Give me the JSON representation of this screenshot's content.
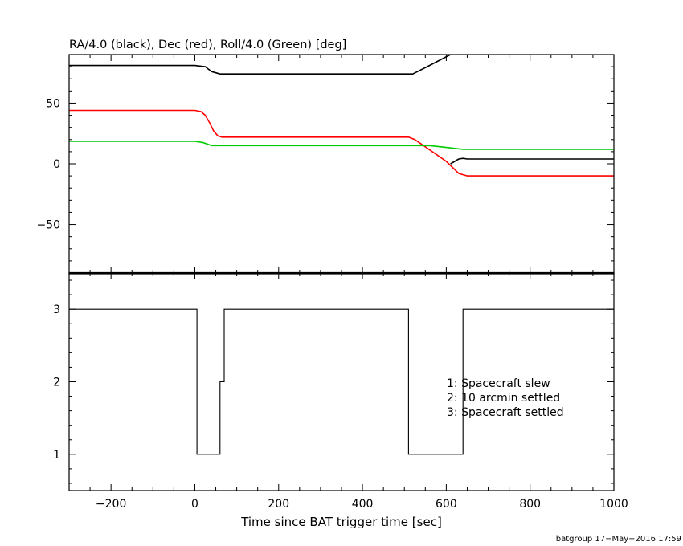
{
  "chart_data": [
    {
      "type": "line",
      "title": "RA/4.0 (black), Dec (red), Roll/4.0 (Green) [deg]",
      "xlim": [
        -300,
        1000
      ],
      "ylim": [
        -90,
        90
      ],
      "y_ticks": [
        -50,
        0,
        50
      ],
      "y_tick_labels": [
        "−50",
        "0",
        "50"
      ],
      "grid": false,
      "series": [
        {
          "color": "#000000",
          "segments": [
            {
              "x": [
                -300,
                0,
                25,
                40,
                60,
                70,
                510,
                520,
                560,
                610
              ],
              "y": [
                81,
                81,
                80,
                76,
                74,
                74,
                74,
                74,
                81,
                90
              ]
            },
            {
              "x": [
                610,
                620,
                630,
                640,
                650,
                1000
              ],
              "y": [
                0,
                2,
                4,
                4.5,
                4,
                4
              ]
            }
          ]
        },
        {
          "color": "#ff0000",
          "segments": [
            {
              "x": [
                -300,
                0,
                15,
                25,
                35,
                45,
                55,
                65,
                510,
                525,
                550,
                600,
                630,
                650,
                1000
              ],
              "y": [
                44,
                44,
                43,
                40,
                34,
                27,
                23,
                22,
                22,
                20,
                14,
                2,
                -8,
                -10,
                -10
              ]
            }
          ]
        },
        {
          "color": "#00cc00",
          "segments": [
            {
              "x": [
                -300,
                0,
                20,
                40,
                60,
                510,
                530,
                560,
                600,
                640,
                1000
              ],
              "y": [
                18.5,
                18.5,
                17.5,
                15,
                15,
                15,
                15,
                15,
                13.5,
                12,
                12
              ]
            }
          ]
        }
      ]
    },
    {
      "type": "line",
      "xlabel": "Time since BAT trigger time [sec]",
      "xlim": [
        -300,
        1000
      ],
      "ylim": [
        0.5,
        3.5
      ],
      "x_ticks": [
        -200,
        0,
        200,
        400,
        600,
        800,
        1000
      ],
      "x_tick_labels": [
        "−200",
        "0",
        "200",
        "400",
        "600",
        "800",
        "1000"
      ],
      "y_ticks": [
        1,
        2,
        3
      ],
      "y_tick_labels": [
        "1",
        "2",
        "3"
      ],
      "step": "post",
      "series": [
        {
          "color": "#000000",
          "x": [
            -300,
            5,
            60,
            70,
            510,
            640,
            1000
          ],
          "y": [
            3,
            1,
            2,
            3,
            1,
            3,
            3
          ]
        }
      ],
      "annotations": [
        "1: Spacecraft slew",
        "2: 10 arcmin settled",
        "3: Spacecraft settled"
      ]
    }
  ],
  "footer": {
    "credit": "batgroup 17−May−2016 17:59"
  }
}
